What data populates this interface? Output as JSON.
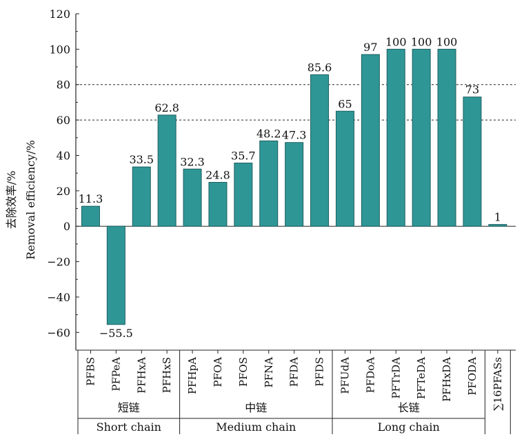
{
  "chart_data": {
    "type": "bar",
    "ylabel_cn": "去除效率/%",
    "ylabel": "Removal efficiency/%",
    "ylim": [
      -70,
      120
    ],
    "yticks": [
      -60,
      -40,
      -20,
      0,
      20,
      40,
      60,
      80,
      100,
      120
    ],
    "reference_lines": [
      60,
      80
    ],
    "bar_color": "#2f9696",
    "categories": [
      "PFBS",
      "PFPeA",
      "PFHxA",
      "PFHxS",
      "PFHpA",
      "PFOA",
      "PFOS",
      "PFNA",
      "PFDA",
      "PFDS",
      "PFUdA",
      "PFDoA",
      "PFTrDA",
      "PFTeDA",
      "PFHxDA",
      "PFODA",
      "∑16PFASs"
    ],
    "values": [
      11.3,
      -55.5,
      33.5,
      62.8,
      32.3,
      24.8,
      35.7,
      48.2,
      47.3,
      85.6,
      65,
      97,
      100,
      100,
      100,
      73,
      1
    ],
    "data_labels": [
      "11.3",
      "−55.5",
      "33.5",
      "62.8",
      "32.3",
      "24.8",
      "35.7",
      "48.2",
      "47.3",
      "85.6",
      "65",
      "97",
      "100",
      "100",
      "100",
      "73",
      "1"
    ],
    "groups": [
      {
        "cn": "短链",
        "en": "Short chain",
        "start": 0,
        "end": 3
      },
      {
        "cn": "中链",
        "en": "Medium chain",
        "start": 4,
        "end": 9
      },
      {
        "cn": "长链",
        "en": "Long chain",
        "start": 10,
        "end": 15
      }
    ]
  }
}
